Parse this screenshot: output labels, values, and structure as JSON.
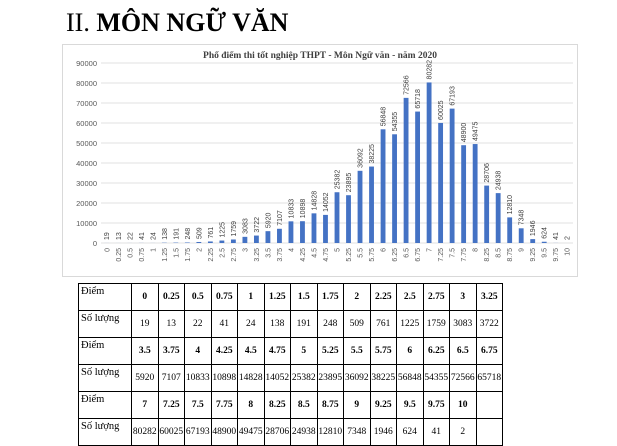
{
  "heading": {
    "number": "II.",
    "subject": "MÔN NGỮ VĂN"
  },
  "chart_data": {
    "type": "bar",
    "title": "Phổ điểm thi tốt nghiệp THPT - Môn Ngữ văn - năm 2020",
    "xlabel": "",
    "ylabel": "",
    "ylim": [
      0,
      90000
    ],
    "yticks": [
      0,
      10000,
      20000,
      30000,
      40000,
      50000,
      60000,
      70000,
      80000,
      90000
    ],
    "grid": true,
    "legend": "none",
    "bar_color": "#4472c4",
    "categories": [
      "0",
      "0.25",
      "0.5",
      "0.75",
      "1",
      "1.25",
      "1.5",
      "1.75",
      "2",
      "2.25",
      "2.5",
      "2.75",
      "3",
      "3.25",
      "3.5",
      "3.75",
      "4",
      "4.25",
      "4.5",
      "4.75",
      "5",
      "5.25",
      "5.5",
      "5.75",
      "6",
      "6.25",
      "6.5",
      "6.75",
      "7",
      "7.25",
      "7.5",
      "7.75",
      "8",
      "8.25",
      "8.5",
      "8.75",
      "9",
      "9.25",
      "9.5",
      "9.75",
      "10"
    ],
    "values": [
      19,
      13,
      22,
      41,
      24,
      138,
      191,
      248,
      509,
      761,
      1225,
      1759,
      3083,
      3722,
      5920,
      7107,
      10833,
      10898,
      14828,
      14052,
      25382,
      23895,
      36092,
      38225,
      56848,
      54355,
      72566,
      65718,
      80282,
      60025,
      67193,
      48900,
      49475,
      28706,
      24938,
      12810,
      7348,
      1946,
      624,
      41,
      2
    ]
  },
  "table": {
    "label_points": "Điểm",
    "label_count": "Số lượng",
    "rows": [
      {
        "points": [
          "0",
          "0.25",
          "0.5",
          "0.75",
          "1",
          "1.25",
          "1.5",
          "1.75",
          "2",
          "2.25",
          "2.5",
          "2.75",
          "3",
          "3.25"
        ],
        "counts": [
          "19",
          "13",
          "22",
          "41",
          "24",
          "138",
          "191",
          "248",
          "509",
          "761",
          "1225",
          "1759",
          "3083",
          "3722"
        ]
      },
      {
        "points": [
          "3.5",
          "3.75",
          "4",
          "4.25",
          "4.5",
          "4.75",
          "5",
          "5.25",
          "5.5",
          "5.75",
          "6",
          "6.25",
          "6.5",
          "6.75"
        ],
        "counts": [
          "5920",
          "7107",
          "10833",
          "10898",
          "14828",
          "14052",
          "25382",
          "23895",
          "36092",
          "38225",
          "56848",
          "54355",
          "72566",
          "65718"
        ]
      },
      {
        "points": [
          "7",
          "7.25",
          "7.5",
          "7.75",
          "8",
          "8.25",
          "8.5",
          "8.75",
          "9",
          "9.25",
          "9.5",
          "9.75",
          "10",
          ""
        ],
        "counts": [
          "80282",
          "60025",
          "67193",
          "48900",
          "49475",
          "28706",
          "24938",
          "12810",
          "7348",
          "1946",
          "624",
          "41",
          "2",
          ""
        ]
      }
    ]
  }
}
